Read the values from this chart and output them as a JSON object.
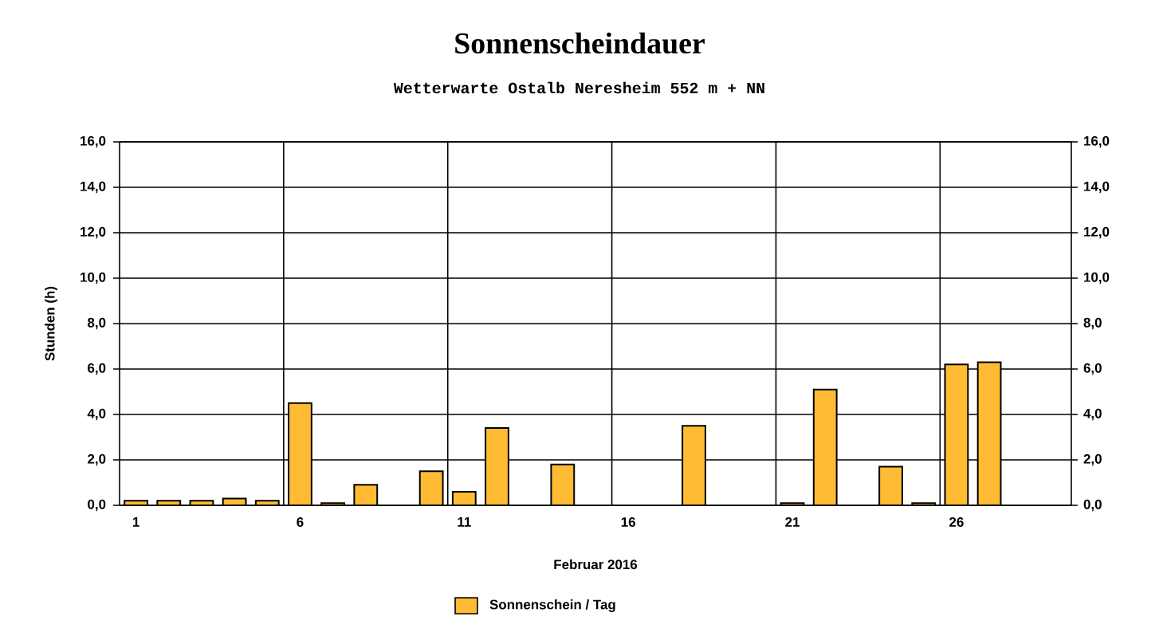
{
  "chart_data": {
    "type": "bar",
    "title": "Sonnenscheindauer",
    "subtitle": "Wetterwarte Ostalb Neresheim 552 m + NN",
    "xlabel": "Februar 2016",
    "ylabel": "Stunden  (h)",
    "categories": [
      "1",
      null,
      null,
      null,
      null,
      "6",
      null,
      null,
      null,
      null,
      "11",
      null,
      null,
      null,
      null,
      "16",
      null,
      null,
      null,
      null,
      "21",
      null,
      null,
      null,
      null,
      "26",
      null,
      null,
      null
    ],
    "series": [
      {
        "name": "Sonnenschein / Tag",
        "color": "#ffbb33",
        "values": [
          0.2,
          0.2,
          0.2,
          0.3,
          0.2,
          4.5,
          0.1,
          0.9,
          null,
          1.5,
          0.6,
          3.4,
          null,
          1.8,
          null,
          null,
          null,
          3.5,
          null,
          null,
          0.1,
          5.1,
          null,
          1.7,
          0.1,
          6.2,
          6.3,
          null,
          null
        ]
      }
    ],
    "ylim": [
      0,
      16
    ],
    "yticks": [
      {
        "value": 0,
        "label": "0,0"
      },
      {
        "value": 2,
        "label": "2,0"
      },
      {
        "value": 4,
        "label": "4,0"
      },
      {
        "value": 6,
        "label": "6,0"
      },
      {
        "value": 8,
        "label": "8,0"
      },
      {
        "value": 10,
        "label": "10,0"
      },
      {
        "value": 12,
        "label": "12,0"
      },
      {
        "value": 14,
        "label": "14,0"
      },
      {
        "value": 16,
        "label": "16,0"
      }
    ],
    "y2lim": [
      0,
      16
    ],
    "y2ticks": [
      {
        "value": 0,
        "label": "0,0"
      },
      {
        "value": 2,
        "label": "2,0"
      },
      {
        "value": 4,
        "label": "4,0"
      },
      {
        "value": 6,
        "label": "6,0"
      },
      {
        "value": 8,
        "label": "8,0"
      },
      {
        "value": 10,
        "label": "10,0"
      },
      {
        "value": 12,
        "label": "12,0"
      },
      {
        "value": 14,
        "label": "14,0"
      },
      {
        "value": 16,
        "label": "16,0"
      }
    ],
    "grid": true,
    "legend": "bottom"
  }
}
